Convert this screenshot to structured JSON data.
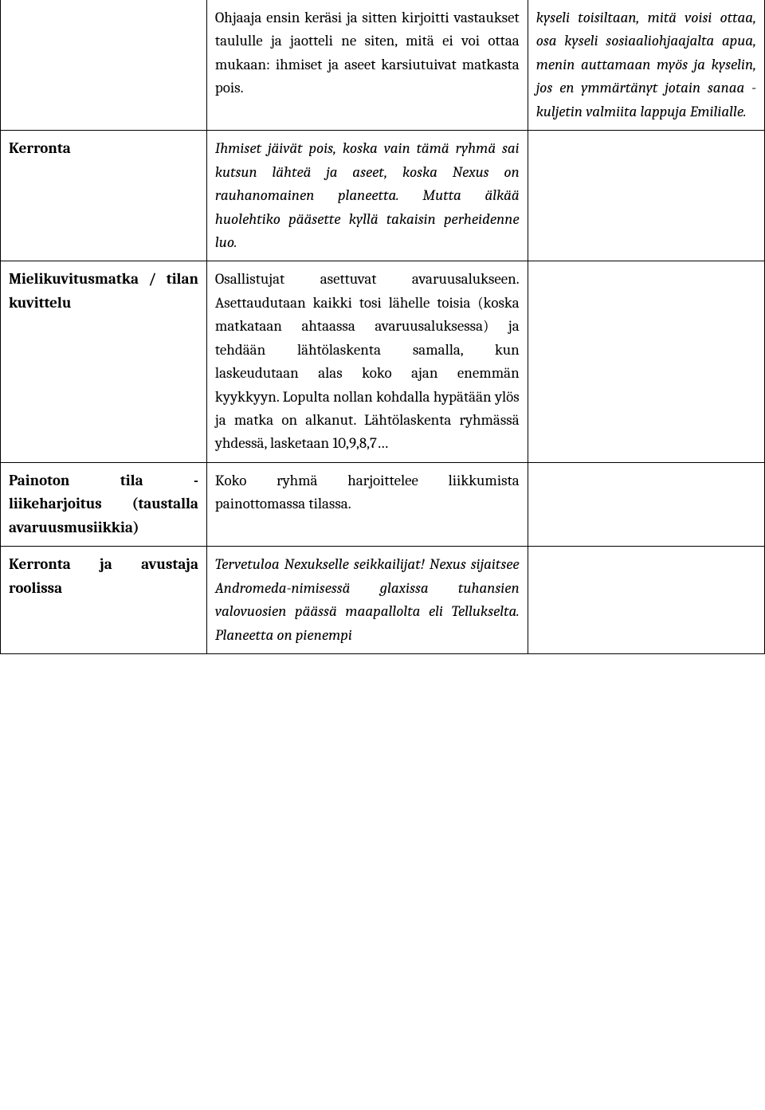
{
  "table": {
    "rows": [
      {
        "col1": "",
        "col2": "Ohjaaja ensin keräsi ja sitten kirjoitti vastaukset taululle ja jaotteli ne siten, mitä ei voi ottaa mukaan: ihmiset ja aseet karsiutuivat matkasta pois.",
        "col2_style": "justify",
        "col3": "kyseli toisiltaan, mitä voisi ottaa, osa kyseli sosiaaliohjaajalta apua, menin auttamaan myös ja kyselin, jos en ymmärtänyt jotain sanaa - kuljetin valmiita lappuja Emilialle.",
        "col3_style": "italic justify",
        "no_top": true
      },
      {
        "col1": "Kerronta",
        "col1_style": "bold",
        "col2": "Ihmiset jäivät pois, koska vain tämä ryhmä sai kutsun lähteä ja aseet, koska Nexus on rauhanomainen planeetta. Mutta älkää huolehtiko pääsette kyllä takaisin perheidenne luo.",
        "col2_style": "italic justify",
        "col3": ""
      },
      {
        "col1": "Mielikuvitusmatka / tilan kuvittelu",
        "col1_style": "bold justify",
        "col2": "Osallistujat asettuvat avaruusalukseen. Asettaudutaan kaikki tosi lähelle toisia (koska matkataan ahtaassa avaruusaluksessa) ja tehdään lähtölaskenta samalla, kun laskeudutaan alas koko ajan enemmän kyykkyyn. Lopulta nollan kohdalla hypätään ylös ja matka on alkanut. Lähtölaskenta ryhmässä yhdessä, lasketaan 10,9,8,7…",
        "col2_style": "justify",
        "col3": ""
      },
      {
        "col1": "Painoton tila - liikeharjoitus (taustalla avaruusmusiikkia)",
        "col1_style": "bold justify",
        "col2": "Koko ryhmä harjoittelee liikkumista painottomassa tilassa.",
        "col2_style": "justify",
        "col3": ""
      },
      {
        "col1": "Kerronta ja avustaja roolissa",
        "col1_style": "bold justify",
        "col2": "Tervetuloa Nexukselle seikkailijat! Nexus sijaitsee Andromeda-nimisessä glaxissa tuhansien valovuosien päässä maapallolta eli Tellukselta. Planeetta on pienempi",
        "col2_style": "italic justify",
        "col3": ""
      }
    ]
  },
  "colors": {
    "border": "#000000",
    "text": "#000000",
    "background": "#ffffff"
  },
  "font": {
    "family": "Cambria, Georgia, serif",
    "size_pt": 14
  }
}
